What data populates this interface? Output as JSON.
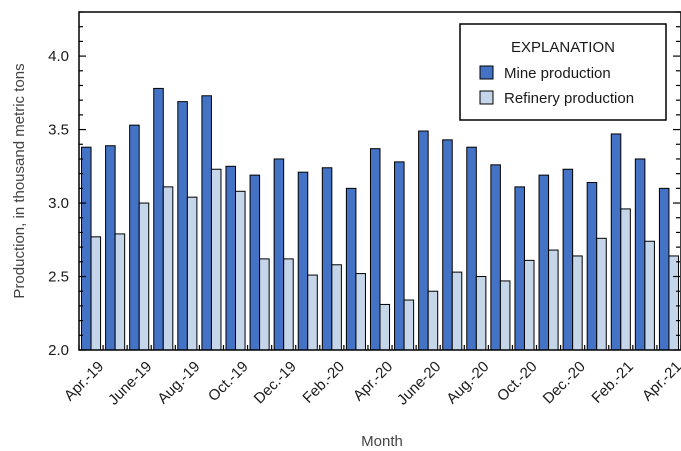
{
  "chart_data": {
    "type": "bar",
    "xlabel": "Month",
    "ylabel": "Production, in thousand metric tons",
    "ylim": [
      2.0,
      4.3
    ],
    "yticks": [
      "2.0",
      "2.5",
      "3.0",
      "3.5",
      "4.0"
    ],
    "grid": false,
    "legend_title": "EXPLANATION",
    "legend_position": "top-right",
    "categories": [
      "Apr.-19",
      "May-19",
      "June-19",
      "July-19",
      "Aug.-19",
      "Sep.-19",
      "Oct.-19",
      "Nov.-19",
      "Dec.-19",
      "Jan.-20",
      "Feb.-20",
      "Mar.-20",
      "Apr.-20",
      "May-20",
      "June-20",
      "July-20",
      "Aug.-20",
      "Sep.-20",
      "Oct.-20",
      "Nov.-20",
      "Dec.-20",
      "Jan.-21",
      "Feb.-21",
      "Mar.-21",
      "Apr.-21"
    ],
    "tick_labels": [
      "Apr.-19",
      "June-19",
      "Aug.-19",
      "Oct.-19",
      "Dec.-19",
      "Feb.-20",
      "Apr.-20",
      "June-20",
      "Aug.-20",
      "Oct.-20",
      "Dec.-20",
      "Feb.-21",
      "Apr.-21"
    ],
    "series": [
      {
        "name": "Mine production",
        "color": "#4472c4",
        "values": [
          3.38,
          3.39,
          3.53,
          3.78,
          3.69,
          3.73,
          3.25,
          3.19,
          3.3,
          3.21,
          3.24,
          3.1,
          3.37,
          3.28,
          3.49,
          3.43,
          3.38,
          3.26,
          3.11,
          3.19,
          3.23,
          3.14,
          3.47,
          3.3,
          3.1
        ]
      },
      {
        "name": "Refinery production",
        "color": "#c5d5ea",
        "values": [
          2.77,
          2.79,
          3.0,
          3.11,
          3.04,
          3.23,
          3.08,
          2.62,
          2.62,
          2.51,
          2.58,
          2.52,
          2.31,
          2.34,
          2.4,
          2.53,
          2.5,
          2.47,
          2.61,
          2.68,
          2.64,
          2.76,
          2.96,
          2.74,
          2.64
        ]
      }
    ]
  }
}
